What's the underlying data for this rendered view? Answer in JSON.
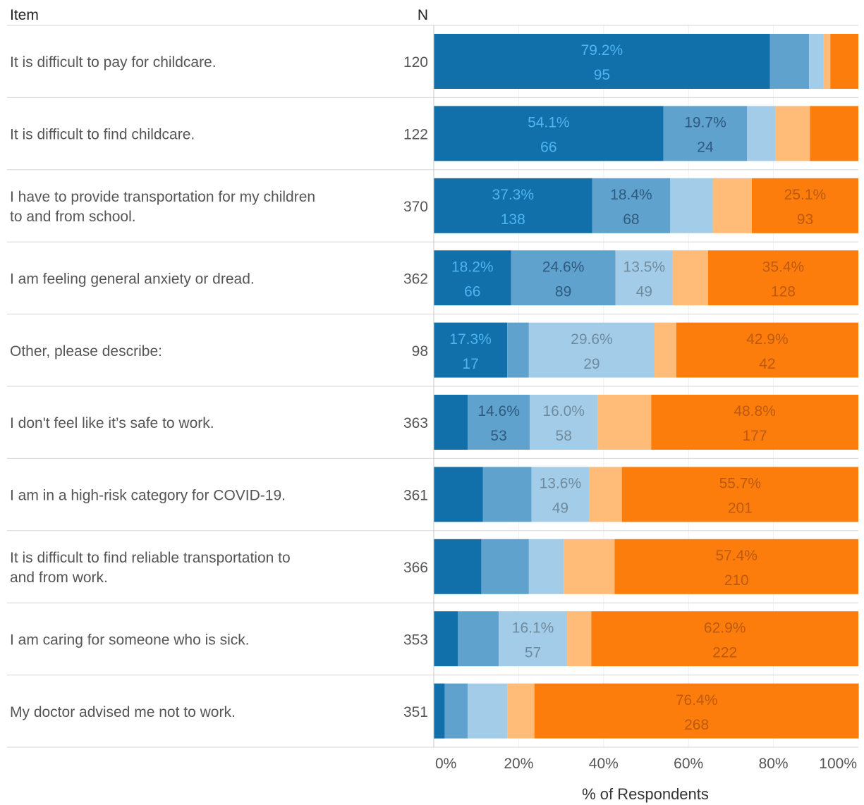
{
  "chart_data": {
    "type": "bar",
    "orientation": "horizontal",
    "stacked": true,
    "headers": {
      "item": "Item",
      "n": "N"
    },
    "xlabel": "% of Respondents",
    "xticks": [
      "0%",
      "20%",
      "40%",
      "60%",
      "80%",
      "100%"
    ],
    "xlim": [
      0,
      100
    ],
    "grid": true,
    "legend": "none",
    "segment_colors": [
      "#1170aa",
      "#5fa2ce",
      "#a3cce9",
      "#ffbc79",
      "#fc7d0b"
    ],
    "label_colors": [
      "#4fb4f0",
      "#2f5a7e",
      "#6f8c9e",
      "#b8702a",
      "#bd5a10"
    ],
    "rows": [
      {
        "label": "It is difficult to pay for childcare.",
        "n": "120",
        "pct": [
          79.2,
          9.2,
          3.3,
          1.7,
          6.6
        ],
        "count": [
          95,
          11,
          4,
          2,
          8
        ],
        "pct_text": [
          "79.2%",
          "",
          "",
          "",
          ""
        ],
        "count_text": [
          "95",
          "",
          "",
          "",
          ""
        ]
      },
      {
        "label": "It is difficult to find childcare.",
        "n": "122",
        "pct": [
          54.1,
          19.7,
          6.6,
          8.2,
          11.4
        ],
        "count": [
          66,
          24,
          8,
          10,
          14
        ],
        "pct_text": [
          "54.1%",
          "19.7%",
          "",
          "",
          ""
        ],
        "count_text": [
          "66",
          "24",
          "",
          "",
          ""
        ]
      },
      {
        "label": "I have to provide transportation for my children to and from school.",
        "n": "370",
        "pct": [
          37.3,
          18.4,
          10.0,
          9.2,
          25.1
        ],
        "count": [
          138,
          68,
          37,
          34,
          93
        ],
        "pct_text": [
          "37.3%",
          "18.4%",
          "",
          "",
          "25.1%"
        ],
        "count_text": [
          "138",
          "68",
          "",
          "",
          "93"
        ]
      },
      {
        "label": "I am feeling general anxiety or dread.",
        "n": "362",
        "pct": [
          18.2,
          24.6,
          13.5,
          8.3,
          35.4
        ],
        "count": [
          66,
          89,
          49,
          30,
          128
        ],
        "pct_text": [
          "18.2%",
          "24.6%",
          "13.5%",
          "",
          "35.4%"
        ],
        "count_text": [
          "66",
          "89",
          "49",
          "",
          "128"
        ]
      },
      {
        "label": "Other, please describe:",
        "n": "98",
        "pct": [
          17.3,
          5.1,
          29.6,
          5.1,
          42.9
        ],
        "count": [
          17,
          5,
          29,
          5,
          42
        ],
        "pct_text": [
          "17.3%",
          "",
          "29.6%",
          "",
          "42.9%"
        ],
        "count_text": [
          "17",
          "",
          "29",
          "",
          "42"
        ]
      },
      {
        "label": "I don't feel like it’s safe to work.",
        "n": "363",
        "pct": [
          8.0,
          14.6,
          16.0,
          12.6,
          48.8
        ],
        "count": [
          29,
          53,
          58,
          46,
          177
        ],
        "pct_text": [
          "",
          "14.6%",
          "16.0%",
          "",
          "48.8%"
        ],
        "count_text": [
          "",
          "53",
          "58",
          "",
          "177"
        ]
      },
      {
        "label": "I am in a high-risk category for COVID-19.",
        "n": "361",
        "pct": [
          11.6,
          11.4,
          13.6,
          7.7,
          55.7
        ],
        "count": [
          42,
          41,
          49,
          28,
          201
        ],
        "pct_text": [
          "",
          "",
          "13.6%",
          "",
          "55.7%"
        ],
        "count_text": [
          "",
          "",
          "49",
          "",
          "201"
        ]
      },
      {
        "label": "It is difficult to find reliable transportation to and from work.",
        "n": "366",
        "pct": [
          11.2,
          11.2,
          8.2,
          12.0,
          57.4
        ],
        "count": [
          41,
          41,
          30,
          44,
          210
        ],
        "pct_text": [
          "",
          "",
          "",
          "",
          "57.4%"
        ],
        "count_text": [
          "",
          "",
          "",
          "",
          "210"
        ]
      },
      {
        "label": "I am caring for someone who is sick.",
        "n": "353",
        "pct": [
          5.7,
          9.6,
          16.1,
          5.7,
          62.9
        ],
        "count": [
          20,
          34,
          57,
          20,
          222
        ],
        "pct_text": [
          "",
          "",
          "16.1%",
          "",
          "62.9%"
        ],
        "count_text": [
          "",
          "",
          "57",
          "",
          "222"
        ]
      },
      {
        "label": "My doctor advised me not to work.",
        "n": "351",
        "pct": [
          2.6,
          5.4,
          9.4,
          6.3,
          76.4
        ],
        "count": [
          9,
          19,
          33,
          22,
          268
        ],
        "pct_text": [
          "",
          "",
          "",
          "",
          "76.4%"
        ],
        "count_text": [
          "",
          "",
          "",
          "",
          "268"
        ]
      }
    ]
  }
}
